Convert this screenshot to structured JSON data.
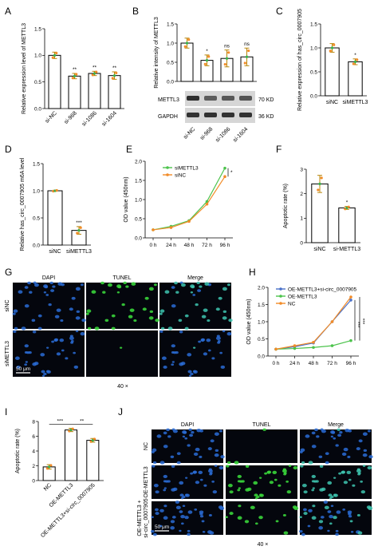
{
  "colors": {
    "bar_fill": "#ffffff",
    "bar_stroke": "#000000",
    "err_color": "#b8860b",
    "dot_orange": "#f28c28",
    "dot_green": "#35b34a",
    "line_green": "#4cc34c",
    "line_orange": "#f28c28",
    "line_blue": "#4a70c8",
    "dapi": "#2a6cd6",
    "tunel": "#39d43a",
    "cell_bg": "#04060d"
  },
  "panels": {
    "A": "A",
    "B": "B",
    "C": "C",
    "D": "D",
    "E": "E",
    "F": "F",
    "G": "G",
    "H": "H",
    "I": "I",
    "J": "J"
  },
  "blot": {
    "bands": [
      {
        "name": "METTL3",
        "kd": "70 KD"
      },
      {
        "name": "GAPDH",
        "kd": "36 KD"
      }
    ]
  },
  "micrographs": {
    "G": {
      "columns": [
        "DAPI",
        "TUNEL",
        "Merge"
      ],
      "rows": [
        "siNC",
        "siMETTL3"
      ],
      "scale": "50 μm",
      "mag": "40 ×",
      "tunel_intensity": [
        0.8,
        0.03
      ]
    },
    "J": {
      "columns": [
        "DAPI",
        "TUNEL",
        "Merge"
      ],
      "rows": [
        "NC",
        "OE-METTL3",
        "OE-METTL3 +\nsi-circ_0007905"
      ],
      "scale": "50 μm",
      "mag": "40 ×",
      "tunel_intensity": [
        0.15,
        0.9,
        0.35
      ]
    }
  },
  "chart_data": [
    {
      "id": "A",
      "type": "bar",
      "ylabel": "Relative expression level of METTL3",
      "ylim": [
        0,
        1.5
      ],
      "yticks": [
        "0.0",
        "0.5",
        "1.0",
        "1.5"
      ],
      "categories": [
        "si-NC",
        "si-968",
        "si-1086",
        "si-1604"
      ],
      "values": [
        1.0,
        0.61,
        0.66,
        0.62
      ],
      "errors": [
        0.06,
        0.05,
        0.04,
        0.07
      ],
      "annotations": [
        "",
        "**",
        "**",
        "**"
      ]
    },
    {
      "id": "B",
      "type": "bar",
      "ylabel": "Relative intensity of METTL3",
      "ylim": [
        0,
        1.5
      ],
      "yticks": [
        "0.0",
        "0.5",
        "1.0",
        "1.5"
      ],
      "categories": [
        "si-NC",
        "si-968",
        "si-1086",
        "si-1604"
      ],
      "values": [
        1.0,
        0.55,
        0.6,
        0.64
      ],
      "errors": [
        0.13,
        0.14,
        0.22,
        0.23
      ],
      "annotations": [
        "",
        "*",
        "ns",
        "ns"
      ]
    },
    {
      "id": "C",
      "type": "bar",
      "ylabel": "Relative expression of has_circ_0007905",
      "ylim": [
        0,
        1.5
      ],
      "yticks": [
        "0.0",
        "0.5",
        "1.0",
        "1.5"
      ],
      "categories": [
        "siNC",
        "siMETTL3"
      ],
      "values": [
        1.0,
        0.71
      ],
      "errors": [
        0.09,
        0.06
      ],
      "annotations": [
        "",
        "*"
      ]
    },
    {
      "id": "D",
      "type": "bar",
      "ylabel": "Relative has_circ_0007905 m6A level",
      "ylim": [
        0,
        1.5
      ],
      "yticks": [
        "0.0",
        "0.5",
        "1.0",
        "1.5"
      ],
      "categories": [
        "siNC",
        "siMETTL3"
      ],
      "values": [
        1.0,
        0.27
      ],
      "errors": [
        0.01,
        0.07
      ],
      "annotations": [
        "",
        "***"
      ]
    },
    {
      "id": "E",
      "type": "line",
      "ylabel": "OD value (450nm)",
      "ylim": [
        0.0,
        2.0
      ],
      "yticks": [
        "0.0",
        "0.5",
        "1.0",
        "1.5",
        "2.0"
      ],
      "x": [
        "0 h",
        "24 h",
        "48 h",
        "72 h",
        "96 h"
      ],
      "series": [
        {
          "name": "siMETTL3",
          "values": [
            0.21,
            0.3,
            0.45,
            0.95,
            1.82
          ]
        },
        {
          "name": "siNC",
          "values": [
            0.21,
            0.27,
            0.43,
            0.88,
            1.6
          ]
        }
      ],
      "annotation": "*"
    },
    {
      "id": "F",
      "type": "bar",
      "ylabel": "Apoptotic rate (%)",
      "ylim": [
        0,
        3
      ],
      "yticks": [
        "0",
        "1",
        "2",
        "3"
      ],
      "categories": [
        "siNC",
        "si-METTL3"
      ],
      "values": [
        2.4,
        1.42
      ],
      "errors": [
        0.35,
        0.06
      ],
      "annotations": [
        "",
        "*"
      ]
    },
    {
      "id": "H",
      "type": "line",
      "ylabel": "OD value (450nm)",
      "ylim": [
        0.0,
        2.0
      ],
      "yticks": [
        "0.0",
        "0.5",
        "1.0",
        "1.5",
        "2.0"
      ],
      "x": [
        "0 h",
        "24 h",
        "48 h",
        "72 h",
        "96 h"
      ],
      "series": [
        {
          "name": "OE-METTL3+si-circ_0007905",
          "values": [
            0.2,
            0.27,
            0.38,
            1.0,
            1.63
          ]
        },
        {
          "name": "OE-METTL3",
          "values": [
            0.2,
            0.22,
            0.25,
            0.3,
            0.45
          ]
        },
        {
          "name": "NC",
          "values": [
            0.2,
            0.3,
            0.4,
            1.0,
            1.72
          ]
        }
      ],
      "annotations": [
        "***",
        "***"
      ]
    },
    {
      "id": "I",
      "type": "bar",
      "ylabel": "Apoptotic rate (%)",
      "ylim": [
        0,
        8
      ],
      "yticks": [
        "0",
        "2",
        "4",
        "6",
        "8"
      ],
      "categories": [
        "NC",
        "OE-METTL3",
        "OE-METTL3+si-circ_0007905"
      ],
      "values": [
        1.85,
        6.85,
        5.45
      ],
      "errors": [
        0.3,
        0.22,
        0.25
      ],
      "annotations": [
        "***",
        "**"
      ]
    }
  ]
}
